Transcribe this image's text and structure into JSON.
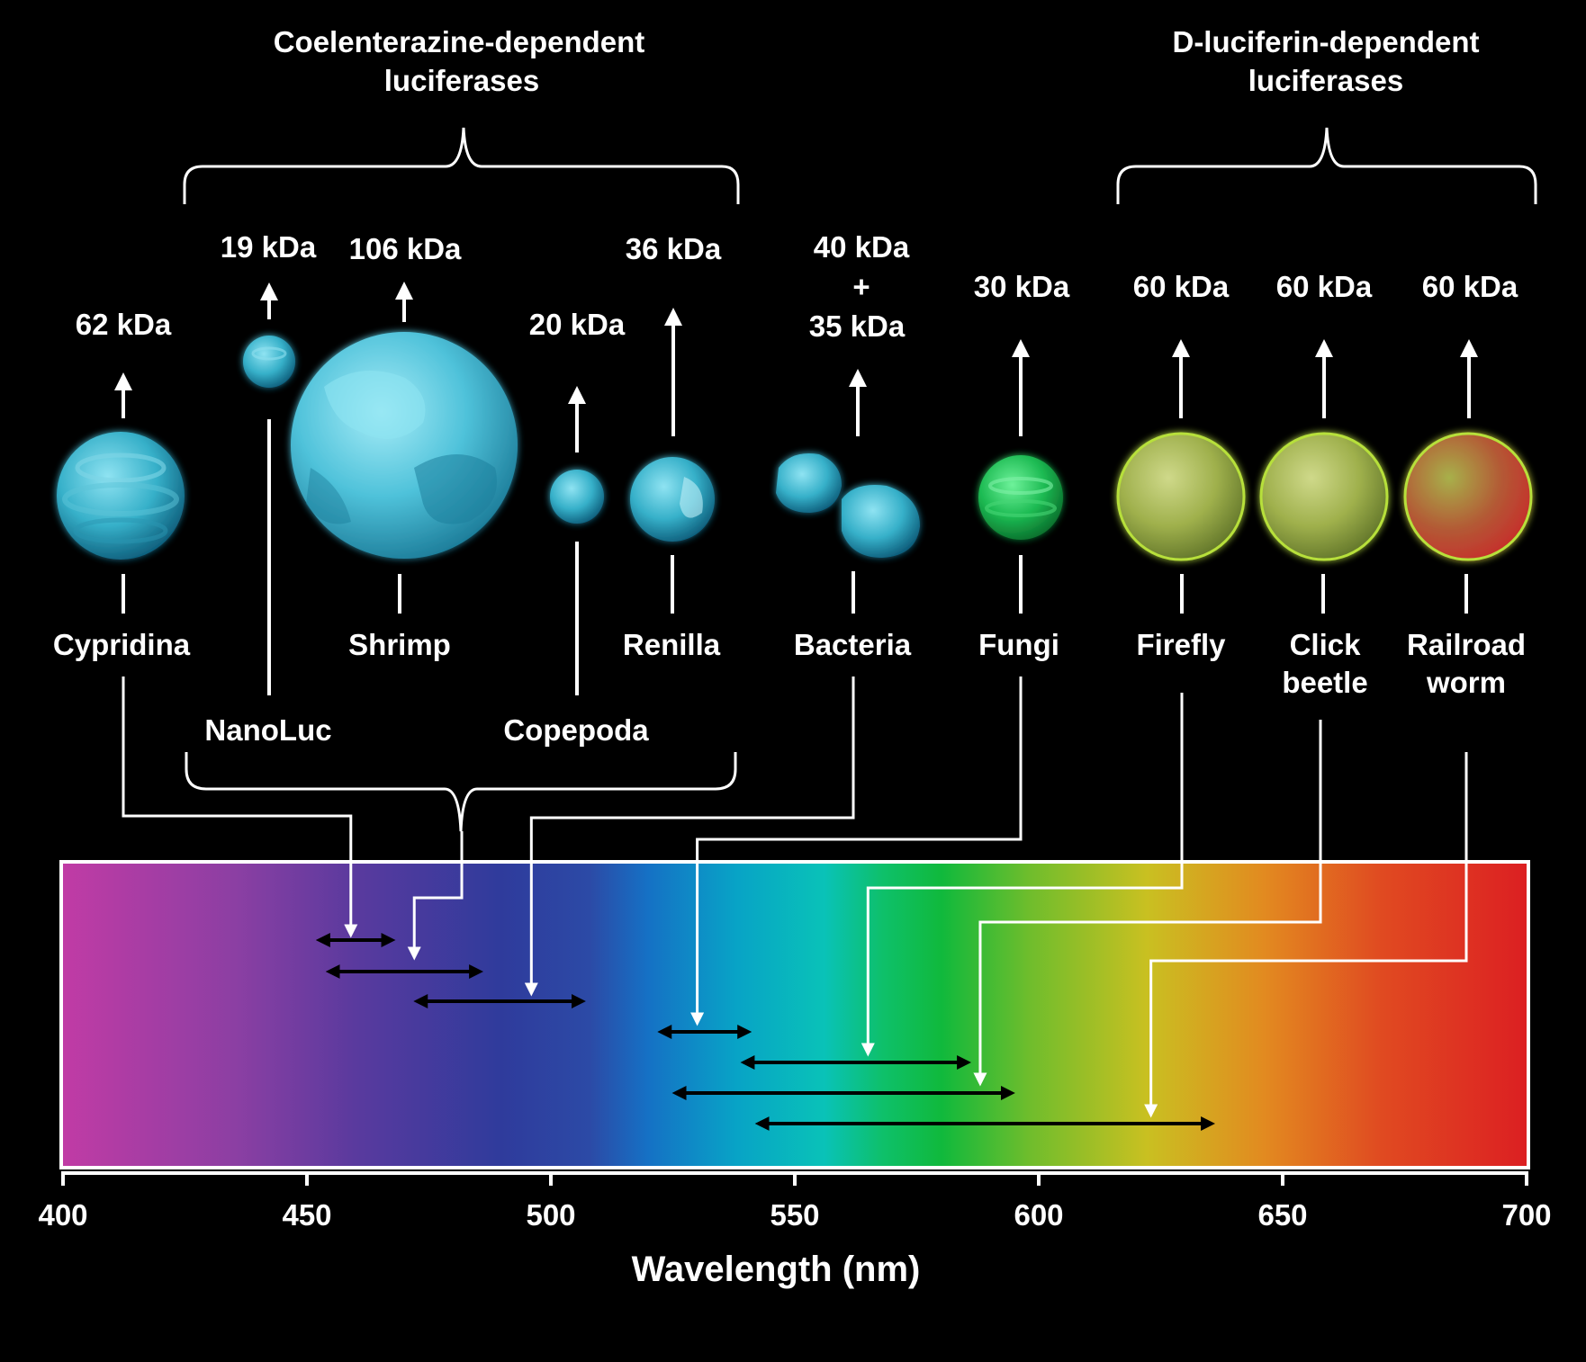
{
  "groups": {
    "coelenterazine_line1": "Coelenterazine-dependent",
    "coelenterazine_line2": "luciferases",
    "dluciferin_line1": "D-luciferin-dependent",
    "dluciferin_line2": "luciferases"
  },
  "organisms": [
    {
      "name": "Cypridina",
      "mass": "62 kDa",
      "range": [
        453,
        467
      ],
      "marker": 459
    },
    {
      "name": "NanoLuc",
      "mass": "19 kDa",
      "range": [
        455,
        485
      ],
      "marker": 472
    },
    {
      "name": "Shrimp",
      "mass": "106 kDa",
      "range": [
        455,
        485
      ],
      "marker": 472
    },
    {
      "name": "Copepoda",
      "mass": "20 kDa",
      "range": [
        455,
        485
      ],
      "marker": 472
    },
    {
      "name": "Renilla",
      "mass": "36 kDa",
      "range": [
        455,
        485
      ],
      "marker": 472
    },
    {
      "name": "Bacteria",
      "mass_line1": "40 kDa",
      "mass_plus": "+",
      "mass_line2": "35 kDa",
      "range": [
        473,
        506
      ],
      "marker": 496
    },
    {
      "name": "Fungi",
      "mass": "30 kDa",
      "range": [
        523,
        540
      ],
      "marker": 530
    },
    {
      "name": "Firefly",
      "mass": "60 kDa",
      "range": [
        540,
        585
      ],
      "marker": 565
    },
    {
      "name_line1": "Click",
      "name_line2": "beetle",
      "mass": "60 kDa",
      "range": [
        526,
        594
      ],
      "marker": 588
    },
    {
      "name_line1": "Railroad",
      "name_line2": "worm",
      "mass": "60 kDa",
      "range": [
        543,
        635
      ],
      "marker": 623
    }
  ],
  "axis": {
    "min": 400,
    "max": 700,
    "ticks": [
      "400",
      "450",
      "500",
      "550",
      "600",
      "650",
      "700"
    ],
    "label": "Wavelength (nm)"
  },
  "colors": {
    "background": "#000000",
    "coelenterazine_sphere": "#2fa9c0",
    "fungi_sphere": "#1fc44f",
    "dluciferin_sphere": "#9dbb3a",
    "railroad_sphere": "#b84a2c"
  }
}
